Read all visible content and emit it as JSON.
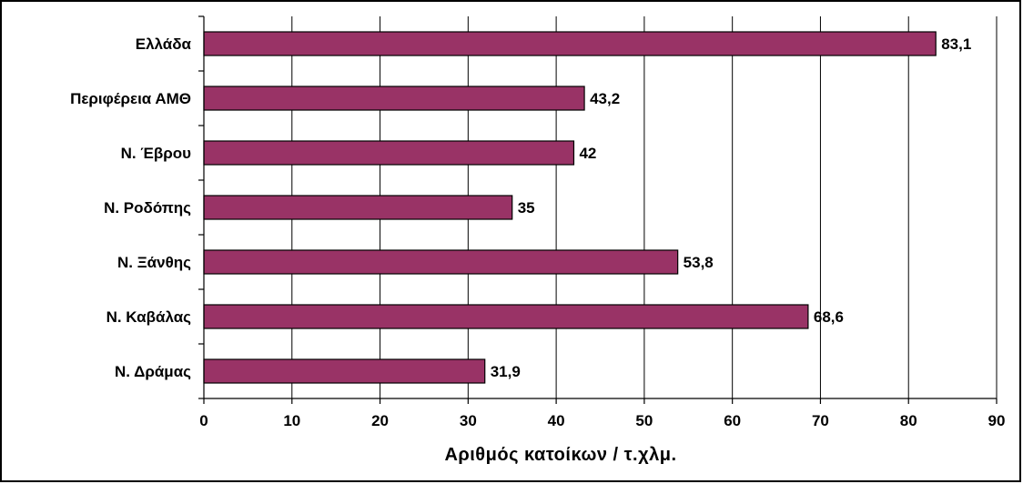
{
  "chart_data": {
    "type": "bar",
    "orientation": "horizontal",
    "categories": [
      "Ελλάδα",
      "Περιφέρεια ΑΜΘ",
      "Ν. Έβρου",
      "Ν. Ροδόπης",
      "Ν. Ξάνθης",
      "Ν. Καβάλας",
      "Ν. Δράμας"
    ],
    "values": [
      83.1,
      43.2,
      42,
      35,
      53.8,
      68.6,
      31.9
    ],
    "value_labels": [
      "83,1",
      "43,2",
      "42",
      "35",
      "53,8",
      "68,6",
      "31,9"
    ],
    "xlabel": "Αριθμός κατοίκων / τ.χλμ.",
    "xlim": [
      0,
      90
    ],
    "xticks": [
      0,
      10,
      20,
      30,
      40,
      50,
      60,
      70,
      80,
      90
    ],
    "grid": true,
    "legend": "none",
    "bar_color": "#993366",
    "border_color": "#000000"
  }
}
